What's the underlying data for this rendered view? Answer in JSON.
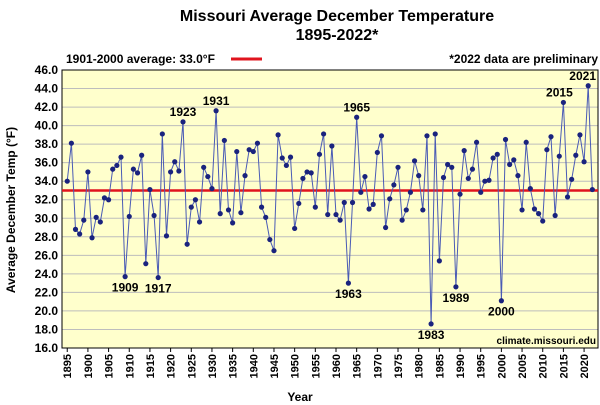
{
  "chart_data": {
    "type": "line",
    "title": "Missouri Average December Temperature",
    "subtitle": "1895-2022*",
    "xlabel": "Year",
    "ylabel": "Average December Temp (°F)",
    "ylim": [
      16.0,
      46.0
    ],
    "y_ticks": [
      "16.0",
      "18.0",
      "20.0",
      "22.0",
      "24.0",
      "26.0",
      "28.0",
      "30.0",
      "32.0",
      "34.0",
      "36.0",
      "38.0",
      "40.0",
      "42.0",
      "44.0",
      "46.0"
    ],
    "xlim": [
      1895,
      2022
    ],
    "x_ticks": [
      "1895",
      "1900",
      "1905",
      "1910",
      "1915",
      "1920",
      "1925",
      "1930",
      "1935",
      "1940",
      "1945",
      "1950",
      "1955",
      "1960",
      "1965",
      "1970",
      "1975",
      "1980",
      "1985",
      "1990",
      "1995",
      "2000",
      "2005",
      "2010",
      "2015",
      "2020"
    ],
    "grid": true,
    "series": [
      {
        "name": "",
        "color": "#1a237e",
        "x": [
          1895,
          1896,
          1897,
          1898,
          1899,
          1900,
          1901,
          1902,
          1903,
          1904,
          1905,
          1906,
          1907,
          1908,
          1909,
          1910,
          1911,
          1912,
          1913,
          1914,
          1915,
          1916,
          1917,
          1918,
          1919,
          1920,
          1921,
          1922,
          1923,
          1924,
          1925,
          1926,
          1927,
          1928,
          1929,
          1930,
          1931,
          1932,
          1933,
          1934,
          1935,
          1936,
          1937,
          1938,
          1939,
          1940,
          1941,
          1942,
          1943,
          1944,
          1945,
          1946,
          1947,
          1948,
          1949,
          1950,
          1951,
          1952,
          1953,
          1954,
          1955,
          1956,
          1957,
          1958,
          1959,
          1960,
          1961,
          1962,
          1963,
          1964,
          1965,
          1966,
          1967,
          1968,
          1969,
          1970,
          1971,
          1972,
          1973,
          1974,
          1975,
          1976,
          1977,
          1978,
          1979,
          1980,
          1981,
          1982,
          1983,
          1984,
          1985,
          1986,
          1987,
          1988,
          1989,
          1990,
          1991,
          1992,
          1993,
          1994,
          1995,
          1996,
          1997,
          1998,
          1999,
          2000,
          2001,
          2002,
          2003,
          2004,
          2005,
          2006,
          2007,
          2008,
          2009,
          2010,
          2011,
          2012,
          2013,
          2014,
          2015,
          2016,
          2017,
          2018,
          2019,
          2020,
          2021,
          2022
        ],
        "values": [
          34.0,
          38.1,
          28.8,
          28.3,
          29.8,
          35.0,
          27.9,
          30.1,
          29.6,
          32.2,
          32.0,
          35.3,
          35.7,
          36.6,
          23.7,
          30.2,
          35.3,
          34.9,
          36.8,
          25.1,
          33.1,
          30.3,
          23.6,
          39.1,
          28.1,
          35.0,
          36.1,
          35.1,
          40.4,
          27.2,
          31.2,
          32.0,
          29.6,
          35.5,
          34.5,
          33.2,
          41.6,
          30.5,
          38.4,
          30.9,
          29.5,
          37.2,
          30.6,
          34.6,
          37.4,
          37.2,
          38.1,
          31.2,
          30.1,
          27.7,
          26.5,
          39.0,
          36.5,
          35.7,
          36.6,
          28.9,
          31.6,
          34.3,
          35.0,
          34.9,
          31.2,
          36.9,
          39.1,
          30.4,
          37.8,
          30.4,
          29.8,
          31.7,
          23.0,
          31.7,
          40.9,
          32.8,
          34.5,
          31.0,
          31.5,
          37.1,
          38.9,
          29.0,
          32.1,
          33.6,
          35.5,
          29.8,
          30.9,
          32.8,
          36.2,
          34.6,
          30.9,
          38.9,
          18.6,
          39.1,
          25.4,
          34.4,
          35.8,
          35.5,
          22.6,
          32.6,
          37.3,
          34.3,
          35.3,
          38.2,
          32.8,
          34.0,
          34.1,
          36.5,
          36.9,
          21.1,
          38.5,
          35.8,
          36.3,
          34.6,
          30.9,
          38.2,
          33.2,
          31.0,
          30.5,
          29.7,
          37.4,
          38.8,
          30.3,
          36.7,
          42.5,
          32.3,
          34.2,
          36.8,
          39.0,
          36.1,
          44.3,
          33.1
        ]
      }
    ],
    "reference_line": {
      "label": "1901-2000 average: 33.0°F",
      "value": 33.0,
      "color": "#e0141e"
    },
    "annotations": [
      {
        "text": "1909",
        "x": 1909,
        "y": 23.7,
        "pos": "below"
      },
      {
        "text": "1917",
        "x": 1917,
        "y": 23.6,
        "pos": "below"
      },
      {
        "text": "1923",
        "x": 1923,
        "y": 40.4,
        "pos": "above"
      },
      {
        "text": "1931",
        "x": 1931,
        "y": 41.6,
        "pos": "above"
      },
      {
        "text": "1963",
        "x": 1963,
        "y": 23.0,
        "pos": "below"
      },
      {
        "text": "1965",
        "x": 1965,
        "y": 40.9,
        "pos": "above"
      },
      {
        "text": "1983",
        "x": 1983,
        "y": 18.6,
        "pos": "below"
      },
      {
        "text": "1989",
        "x": 1989,
        "y": 22.6,
        "pos": "below"
      },
      {
        "text": "2000",
        "x": 2000,
        "y": 21.1,
        "pos": "below"
      },
      {
        "text": "2015",
        "x": 2015,
        "y": 42.5,
        "pos": "above-left"
      },
      {
        "text": "2021",
        "x": 2021,
        "y": 44.3,
        "pos": "above"
      }
    ],
    "note": "*2022 data are preliminary",
    "credit": "climate.missouri.edu"
  }
}
